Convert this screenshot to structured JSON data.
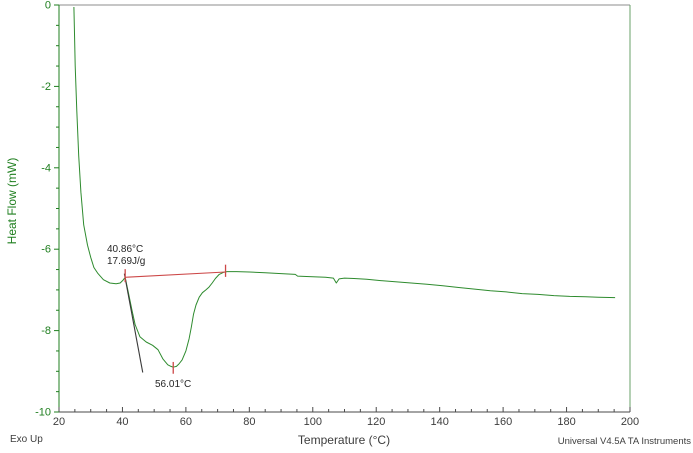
{
  "axes": {
    "x": {
      "label": "Temperature (°C)",
      "min": 20,
      "max": 200,
      "major_ticks": [
        20,
        40,
        60,
        80,
        100,
        120,
        140,
        160,
        180,
        200
      ],
      "tick_labels": [
        "20",
        "40",
        "60",
        "80",
        "100",
        "120",
        "140",
        "160",
        "180",
        "200"
      ],
      "minor_tick_step": 5
    },
    "y": {
      "label": "Heat Flow (mW)",
      "min": -10,
      "max": 0,
      "major_ticks": [
        0,
        -2,
        -4,
        -6,
        -8,
        -10
      ],
      "tick_labels": [
        "0",
        "-2",
        "-4",
        "-6",
        "-8",
        "-10"
      ],
      "minor_tick_step": 0.5
    }
  },
  "footer": {
    "exo_up": "Exo Up",
    "instrument": "Universal V4.5A TA Instruments"
  },
  "annotations": {
    "onset": {
      "temperature": "40.86°C",
      "enthalpy": "17.69J/g"
    },
    "peak": {
      "temperature": "56.01°C"
    }
  },
  "colors": {
    "curve_green": "#2e8b2e",
    "axis_green": "#1f7f1f",
    "axis_dark": "#4a4a4a",
    "label_dark": "#3d3d3d",
    "baseline_red": "#cc4747",
    "tangent_black": "#3a3a3a",
    "border_gray": "#8c8c8c",
    "border_green": "#6aa06a"
  },
  "chart_data": {
    "type": "line",
    "title": "",
    "xlabel": "Temperature (°C)",
    "ylabel": "Heat Flow (mW)",
    "xlim": [
      20,
      200
    ],
    "ylim": [
      -10,
      0
    ],
    "grid": false,
    "legend": "none",
    "series": [
      {
        "name": "heat-flow-curve",
        "points": [
          [
            24.7,
            -0.05
          ],
          [
            24.9,
            -0.7
          ],
          [
            25.1,
            -1.5
          ],
          [
            25.6,
            -2.6
          ],
          [
            26.2,
            -3.7
          ],
          [
            26.9,
            -4.6
          ],
          [
            27.8,
            -5.4
          ],
          [
            29,
            -5.9
          ],
          [
            30,
            -6.2
          ],
          [
            31,
            -6.45
          ],
          [
            32.3,
            -6.6
          ],
          [
            34,
            -6.75
          ],
          [
            36,
            -6.83
          ],
          [
            38,
            -6.85
          ],
          [
            39.3,
            -6.83
          ],
          [
            40.2,
            -6.76
          ],
          [
            40.86,
            -6.69
          ],
          [
            41.3,
            -6.86
          ],
          [
            41.9,
            -7.08
          ],
          [
            43,
            -7.5
          ],
          [
            44,
            -7.85
          ],
          [
            45.5,
            -8.15
          ],
          [
            47.5,
            -8.28
          ],
          [
            49.5,
            -8.36
          ],
          [
            51.2,
            -8.47
          ],
          [
            52.8,
            -8.7
          ],
          [
            54.3,
            -8.84
          ],
          [
            55.3,
            -8.88
          ],
          [
            56.01,
            -8.9
          ],
          [
            57,
            -8.88
          ],
          [
            57.8,
            -8.82
          ],
          [
            58.8,
            -8.72
          ],
          [
            60,
            -8.5
          ],
          [
            61,
            -8.2
          ],
          [
            61.7,
            -7.92
          ],
          [
            62.4,
            -7.6
          ],
          [
            63.2,
            -7.37
          ],
          [
            64.2,
            -7.18
          ],
          [
            65.2,
            -7.07
          ],
          [
            66.3,
            -7.0
          ],
          [
            67.3,
            -6.93
          ],
          [
            68.3,
            -6.83
          ],
          [
            69.3,
            -6.72
          ],
          [
            70.5,
            -6.62
          ],
          [
            71.8,
            -6.57
          ],
          [
            73,
            -6.55
          ],
          [
            76,
            -6.55
          ],
          [
            80,
            -6.56
          ],
          [
            85,
            -6.58
          ],
          [
            90,
            -6.6
          ],
          [
            94.5,
            -6.62
          ],
          [
            95.2,
            -6.66
          ],
          [
            98,
            -6.67
          ],
          [
            101,
            -6.68
          ],
          [
            104,
            -6.69
          ],
          [
            106.5,
            -6.71
          ],
          [
            107.4,
            -6.83
          ],
          [
            108.3,
            -6.73
          ],
          [
            110,
            -6.71
          ],
          [
            113,
            -6.72
          ],
          [
            117,
            -6.74
          ],
          [
            121,
            -6.77
          ],
          [
            126,
            -6.8
          ],
          [
            131,
            -6.83
          ],
          [
            136,
            -6.86
          ],
          [
            141,
            -6.9
          ],
          [
            146,
            -6.94
          ],
          [
            151,
            -6.98
          ],
          [
            156,
            -7.02
          ],
          [
            161,
            -7.05
          ],
          [
            166,
            -7.09
          ],
          [
            171,
            -7.11
          ],
          [
            176,
            -7.14
          ],
          [
            181,
            -7.16
          ],
          [
            186,
            -7.17
          ],
          [
            190,
            -7.18
          ],
          [
            195.3,
            -7.19
          ]
        ]
      }
    ],
    "integration": {
      "onset_temperature_c": 40.86,
      "enthalpy_j_per_g": 17.69,
      "peak_temperature_c": 56.01,
      "baseline": {
        "from": [
          40.86,
          -6.69
        ],
        "to": [
          72.5,
          -6.56
        ]
      },
      "tangent": {
        "from": [
          40.6,
          -6.6
        ],
        "to": [
          46.4,
          -9.03
        ]
      },
      "markers": [
        {
          "name": "onset-marker",
          "x": 40.86,
          "y1": -6.49,
          "y2": -6.81
        },
        {
          "name": "endset-marker",
          "x": 72.5,
          "y1": -6.38,
          "y2": -6.68
        },
        {
          "name": "peak-marker",
          "x": 56.01,
          "y1": -8.77,
          "y2": -9.06
        }
      ]
    }
  }
}
